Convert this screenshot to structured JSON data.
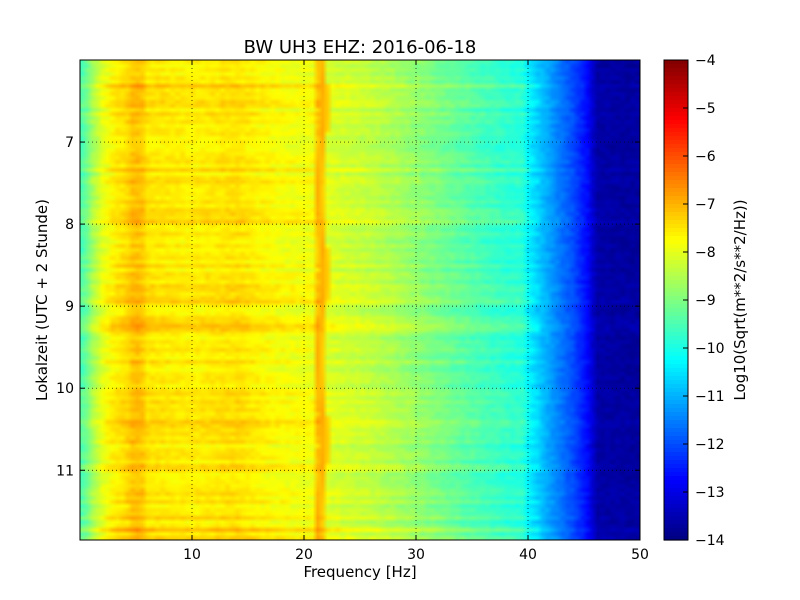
{
  "chart_data": {
    "type": "heatmap",
    "title": "BW UH3 EHZ: 2016-06-18",
    "xlabel": "Frequency [Hz]",
    "ylabel": "Lokalzeit (UTC + 2 Stunde)",
    "colorbar_label": "Log10(Sqrt(m**2/s**2/Hz))",
    "xlim": [
      0,
      50
    ],
    "ylim": [
      11.85,
      6.0
    ],
    "x_ticks": [
      10,
      20,
      30,
      40,
      50
    ],
    "y_ticks": [
      7,
      8,
      9,
      10,
      11
    ],
    "clim": [
      -14,
      -4
    ],
    "colorbar_ticks": [
      -4,
      -5,
      -6,
      -7,
      -8,
      -9,
      -10,
      -11,
      -12,
      -13,
      -14
    ],
    "colormap": "jet",
    "grid": true,
    "frequency_profile": {
      "frequency_hz": [
        0,
        0.5,
        1,
        2,
        3,
        4,
        4.8,
        5.5,
        6,
        8,
        10,
        12,
        14,
        16,
        18,
        20,
        21,
        21.3,
        22,
        24,
        26,
        28,
        30,
        32,
        34,
        36,
        38,
        39.5,
        40,
        42,
        44,
        45.5,
        46,
        50
      ],
      "level_log10": [
        -9.5,
        -9.3,
        -8.7,
        -8.0,
        -7.6,
        -7.45,
        -7.1,
        -7.15,
        -7.5,
        -7.55,
        -7.6,
        -7.55,
        -7.45,
        -7.65,
        -7.8,
        -7.85,
        -7.85,
        -6.9,
        -8.05,
        -8.2,
        -8.35,
        -8.55,
        -8.8,
        -9.05,
        -9.3,
        -9.55,
        -9.75,
        -9.85,
        -10.3,
        -11.2,
        -12.0,
        -12.8,
        -13.6,
        -13.7
      ]
    }
  }
}
